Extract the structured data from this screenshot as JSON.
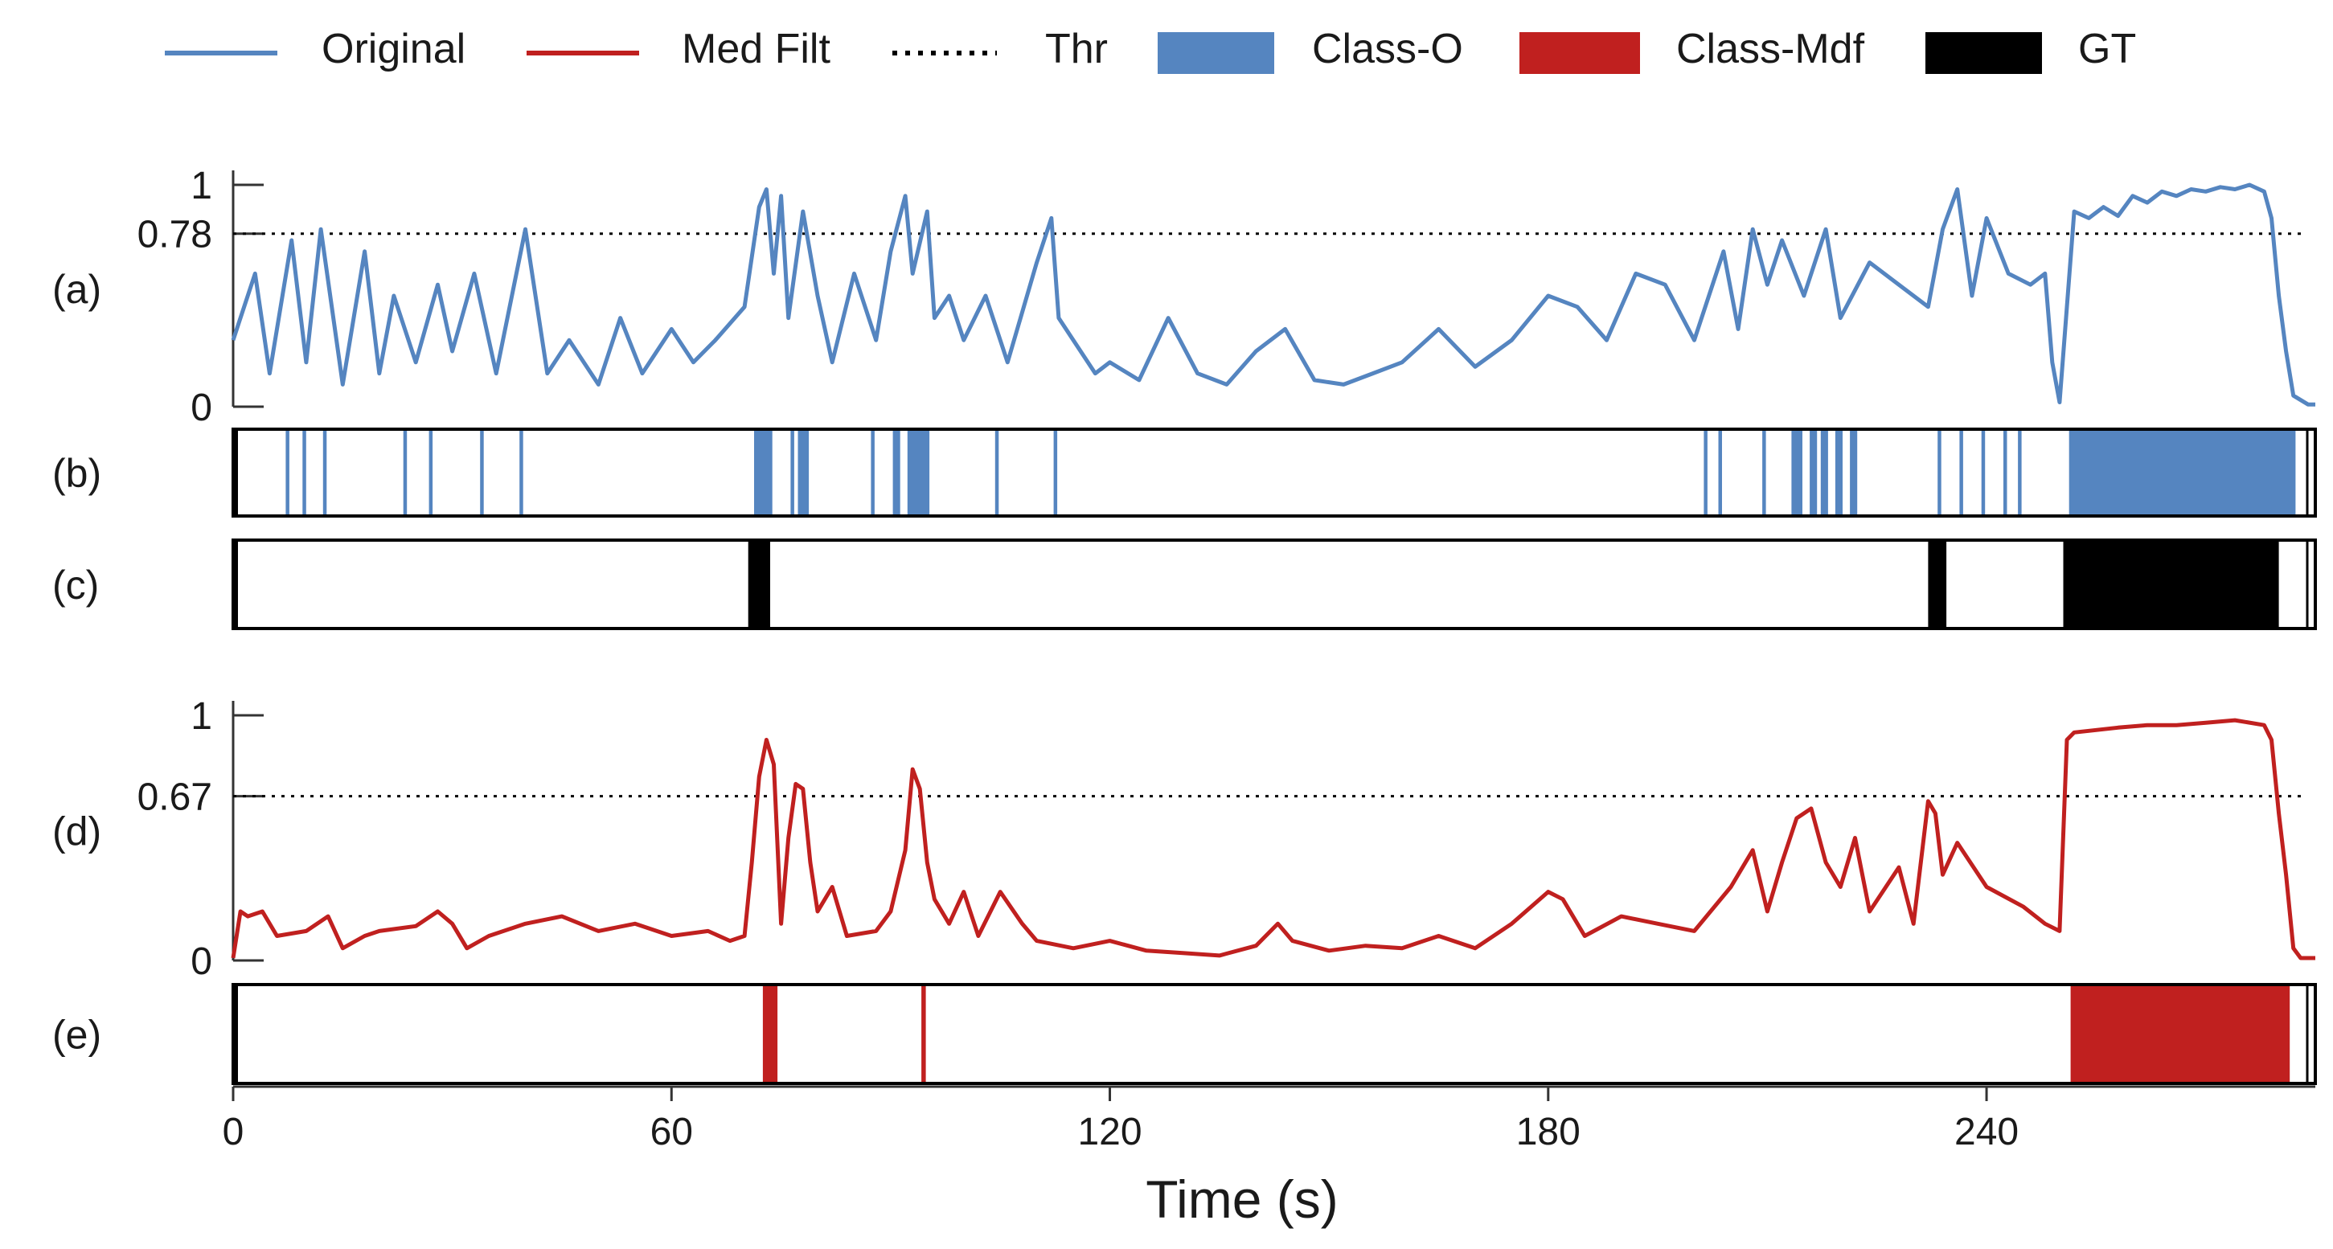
{
  "chart_data": {
    "type": "line",
    "xlabel": "Time (s)",
    "xlim": [
      0,
      285
    ],
    "xticks": [
      0,
      60,
      120,
      180,
      240
    ],
    "xtick_labels": [
      "0",
      "60",
      "120",
      "180",
      "240"
    ],
    "colors": {
      "original": "#5585c0",
      "median": "#c0201f",
      "gt": "#000000",
      "threshold": "#000000"
    },
    "legend": {
      "placement": "top",
      "entries": [
        {
          "label": "Original",
          "kind": "line",
          "color": "#5585c0"
        },
        {
          "label": "Med Filt",
          "kind": "line",
          "color": "#c0201f"
        },
        {
          "label": "Thr",
          "kind": "dotted",
          "color": "#000000"
        },
        {
          "label": "Class-O",
          "kind": "box",
          "color": "#5585c0"
        },
        {
          "label": "Class-Mdf",
          "kind": "box",
          "color": "#c0201f"
        },
        {
          "label": "GT",
          "kind": "box",
          "color": "#000000"
        }
      ]
    },
    "panels": [
      {
        "id": "a",
        "label": "(a)",
        "kind": "line",
        "series_name": "Original",
        "ylim": [
          0,
          1
        ],
        "yticks": [
          0,
          0.78,
          1
        ],
        "ytick_labels": [
          "0",
          "0.78",
          "1"
        ],
        "threshold": 0.78,
        "color": "#5585c0",
        "x": [
          0,
          3,
          5,
          8,
          10,
          12,
          15,
          18,
          20,
          22,
          25,
          28,
          30,
          33,
          36,
          40,
          43,
          46,
          50,
          53,
          56,
          60,
          63,
          66,
          70,
          72,
          73,
          74,
          75,
          76,
          78,
          80,
          82,
          85,
          88,
          90,
          92,
          93,
          95,
          96,
          98,
          100,
          103,
          106,
          110,
          112,
          113,
          115,
          118,
          120,
          124,
          128,
          132,
          136,
          140,
          144,
          148,
          152,
          156,
          160,
          165,
          170,
          175,
          180,
          184,
          188,
          192,
          196,
          200,
          204,
          206,
          208,
          210,
          212,
          215,
          218,
          220,
          224,
          228,
          232,
          234,
          236,
          238,
          240,
          243,
          246,
          248,
          249,
          250,
          252,
          254,
          256,
          258,
          260,
          262,
          264,
          266,
          268,
          270,
          272,
          274,
          276,
          278,
          279,
          280,
          281,
          282,
          284,
          285
        ],
        "y": [
          0.3,
          0.6,
          0.15,
          0.75,
          0.2,
          0.8,
          0.1,
          0.7,
          0.15,
          0.5,
          0.2,
          0.55,
          0.25,
          0.6,
          0.15,
          0.8,
          0.15,
          0.3,
          0.1,
          0.4,
          0.15,
          0.35,
          0.2,
          0.3,
          0.45,
          0.9,
          0.98,
          0.6,
          0.95,
          0.4,
          0.88,
          0.5,
          0.2,
          0.6,
          0.3,
          0.7,
          0.95,
          0.6,
          0.88,
          0.4,
          0.5,
          0.3,
          0.5,
          0.2,
          0.65,
          0.85,
          0.4,
          0.3,
          0.15,
          0.2,
          0.12,
          0.4,
          0.15,
          0.1,
          0.25,
          0.35,
          0.12,
          0.1,
          0.15,
          0.2,
          0.35,
          0.18,
          0.3,
          0.5,
          0.45,
          0.3,
          0.6,
          0.55,
          0.3,
          0.7,
          0.35,
          0.8,
          0.55,
          0.75,
          0.5,
          0.8,
          0.4,
          0.65,
          0.55,
          0.45,
          0.8,
          0.98,
          0.5,
          0.85,
          0.6,
          0.55,
          0.6,
          0.2,
          0.02,
          0.88,
          0.85,
          0.9,
          0.86,
          0.95,
          0.92,
          0.97,
          0.95,
          0.98,
          0.97,
          0.99,
          0.98,
          1.0,
          0.97,
          0.85,
          0.5,
          0.25,
          0.05,
          0.01,
          0.01
        ]
      },
      {
        "id": "b",
        "label": "(b)",
        "kind": "events",
        "series_name": "Class-O",
        "color": "#5585c0",
        "events": [
          [
            7.2,
            7.7
          ],
          [
            9.5,
            10
          ],
          [
            12.3,
            12.8
          ],
          [
            23.3,
            23.8
          ],
          [
            26.8,
            27.3
          ],
          [
            33.8,
            34.3
          ],
          [
            39.2,
            39.7
          ],
          [
            71.3,
            73.8
          ],
          [
            76.3,
            76.8
          ],
          [
            77.3,
            78.8
          ],
          [
            87.3,
            87.8
          ],
          [
            90.3,
            91.3
          ],
          [
            92.3,
            95.3
          ],
          [
            104.3,
            104.8
          ],
          [
            112.3,
            112.8
          ],
          [
            201.3,
            201.8
          ],
          [
            203.3,
            203.8
          ],
          [
            209.3,
            209.8
          ],
          [
            213.3,
            214.8
          ],
          [
            215.8,
            216.8
          ],
          [
            217.3,
            218.3
          ],
          [
            219.3,
            220.3
          ],
          [
            221.3,
            222.3
          ],
          [
            233.3,
            233.8
          ],
          [
            236.3,
            236.8
          ],
          [
            239.3,
            239.8
          ],
          [
            242.3,
            242.8
          ],
          [
            244.3,
            244.8
          ],
          [
            251.3,
            282.3
          ]
        ]
      },
      {
        "id": "c",
        "label": "(c)",
        "kind": "events",
        "series_name": "GT",
        "color": "#000000",
        "events": [
          [
            70.5,
            73.5
          ],
          [
            232,
            234.5
          ],
          [
            250.5,
            280
          ]
        ]
      },
      {
        "id": "d",
        "label": "(d)",
        "kind": "line",
        "series_name": "Med Filt",
        "ylim": [
          0,
          1
        ],
        "yticks": [
          0,
          0.67,
          1
        ],
        "ytick_labels": [
          "0",
          "0.67",
          "1"
        ],
        "threshold": 0.67,
        "color": "#c0201f",
        "x": [
          0,
          1,
          2,
          4,
          6,
          10,
          13,
          15,
          18,
          20,
          25,
          28,
          30,
          32,
          35,
          40,
          45,
          50,
          55,
          60,
          65,
          68,
          70,
          71,
          72,
          73,
          74,
          75,
          76,
          77,
          78,
          79,
          80,
          82,
          84,
          88,
          90,
          92,
          93,
          94,
          95,
          96,
          98,
          100,
          102,
          105,
          108,
          110,
          115,
          120,
          125,
          130,
          135,
          140,
          143,
          145,
          150,
          155,
          160,
          165,
          170,
          175,
          180,
          182,
          185,
          190,
          195,
          200,
          205,
          208,
          210,
          212,
          214,
          216,
          218,
          220,
          222,
          224,
          228,
          230,
          232,
          233,
          234,
          236,
          240,
          245,
          248,
          250,
          251,
          252,
          255,
          258,
          262,
          266,
          270,
          274,
          278,
          279,
          280,
          281,
          282,
          283,
          285
        ],
        "y": [
          0.01,
          0.2,
          0.18,
          0.2,
          0.1,
          0.12,
          0.18,
          0.05,
          0.1,
          0.12,
          0.14,
          0.2,
          0.15,
          0.05,
          0.1,
          0.15,
          0.18,
          0.12,
          0.15,
          0.1,
          0.12,
          0.08,
          0.1,
          0.4,
          0.75,
          0.9,
          0.8,
          0.15,
          0.5,
          0.72,
          0.7,
          0.4,
          0.2,
          0.3,
          0.1,
          0.12,
          0.2,
          0.45,
          0.78,
          0.7,
          0.4,
          0.25,
          0.15,
          0.28,
          0.1,
          0.28,
          0.15,
          0.08,
          0.05,
          0.08,
          0.04,
          0.03,
          0.02,
          0.06,
          0.15,
          0.08,
          0.04,
          0.06,
          0.05,
          0.1,
          0.05,
          0.15,
          0.28,
          0.25,
          0.1,
          0.18,
          0.15,
          0.12,
          0.3,
          0.45,
          0.2,
          0.4,
          0.58,
          0.62,
          0.4,
          0.3,
          0.5,
          0.2,
          0.38,
          0.15,
          0.65,
          0.6,
          0.35,
          0.48,
          0.3,
          0.22,
          0.15,
          0.12,
          0.9,
          0.93,
          0.94,
          0.95,
          0.96,
          0.96,
          0.97,
          0.98,
          0.96,
          0.9,
          0.6,
          0.35,
          0.05,
          0.01,
          0.01
        ]
      },
      {
        "id": "e",
        "label": "(e)",
        "kind": "events",
        "series_name": "Class-Mdf",
        "color": "#c0201f",
        "events": [
          [
            72.5,
            74.5
          ],
          [
            94.2,
            94.8
          ],
          [
            251.5,
            281.5
          ]
        ]
      }
    ]
  }
}
